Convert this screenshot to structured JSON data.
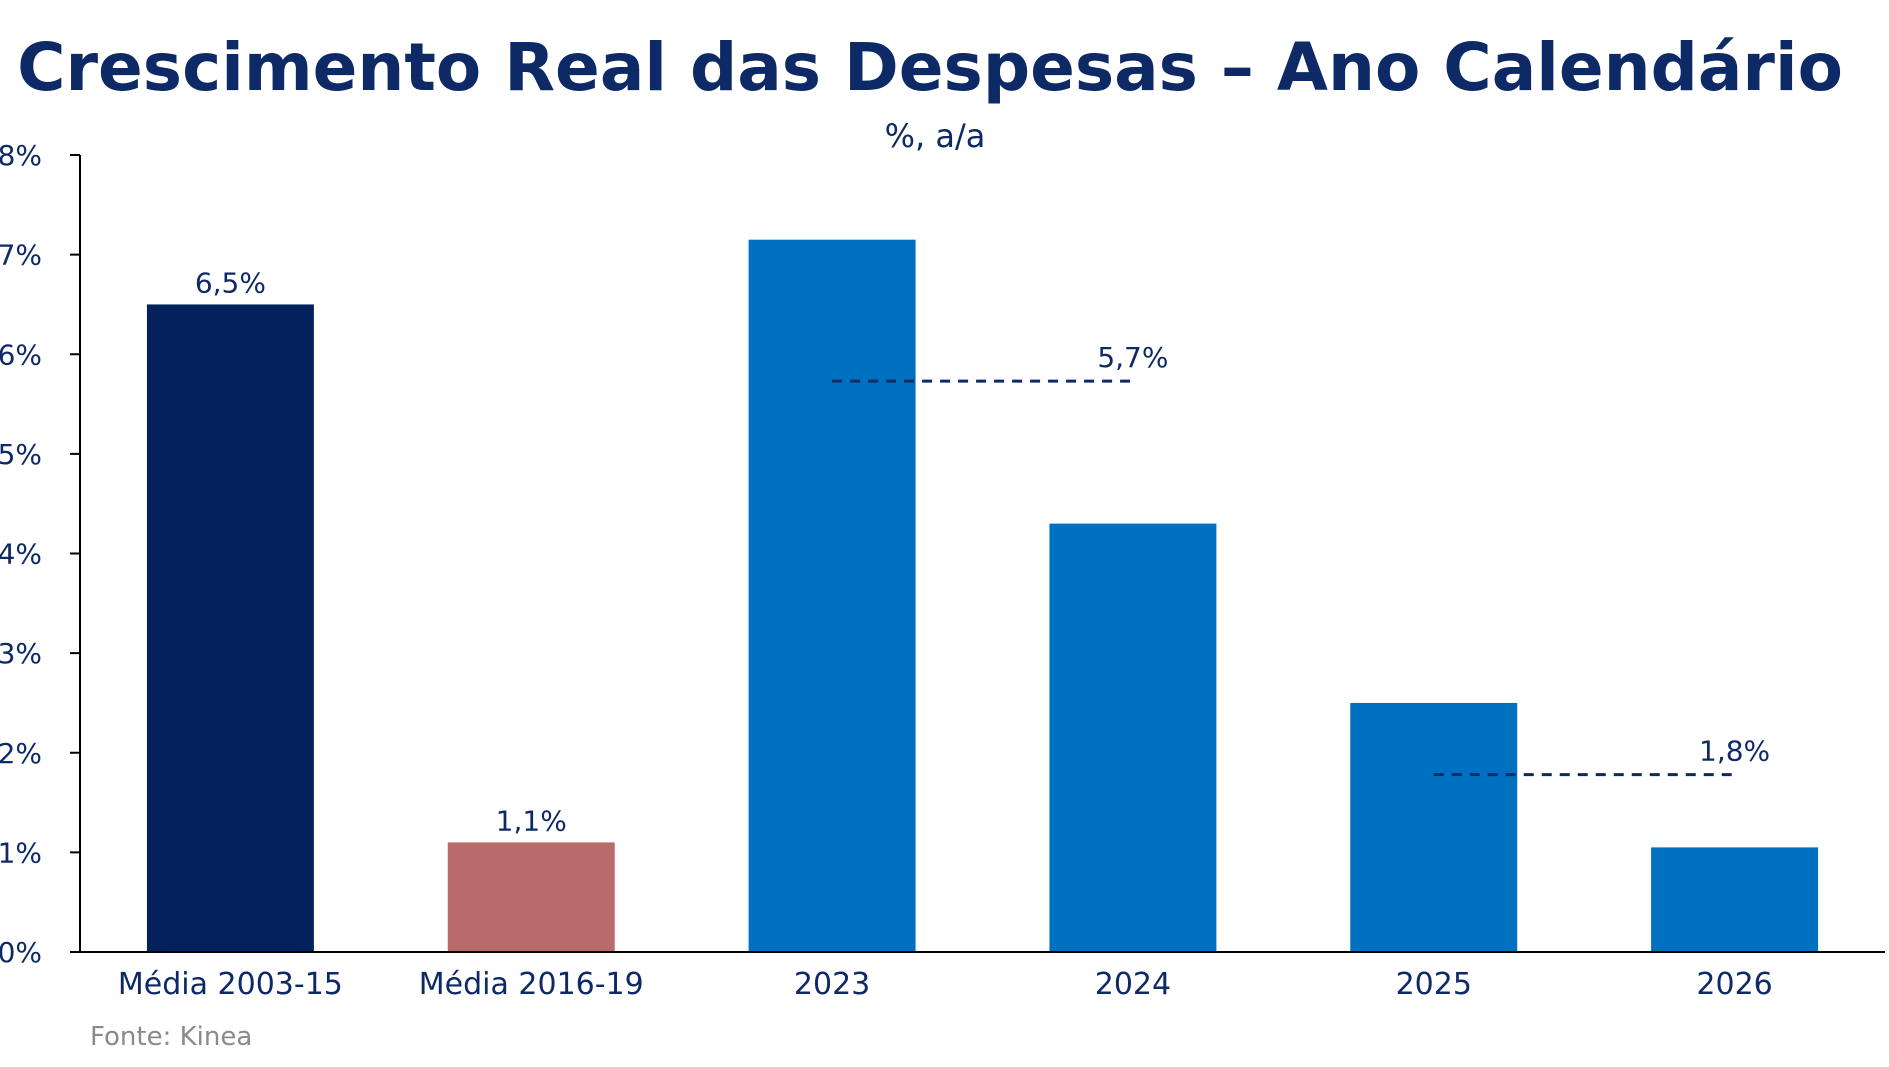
{
  "chart_data": {
    "type": "bar",
    "title": "Crescimento Real das Despesas – Ano Calendário",
    "subtitle": "%, a/a",
    "xlabel": "",
    "ylabel": "",
    "ylim": [
      0,
      8
    ],
    "yticks": [
      {
        "value": 0,
        "label": "0%"
      },
      {
        "value": 1,
        "label": "1%"
      },
      {
        "value": 2,
        "label": "2%"
      },
      {
        "value": 3,
        "label": "3%"
      },
      {
        "value": 4,
        "label": "4%"
      },
      {
        "value": 5,
        "label": "5%"
      },
      {
        "value": 6,
        "label": "6%"
      },
      {
        "value": 7,
        "label": "7%"
      },
      {
        "value": 8,
        "label": "8%"
      }
    ],
    "categories": [
      "Média 2003-15",
      "Média 2016-19",
      "2023",
      "2024",
      "2025",
      "2026"
    ],
    "values": [
      6.5,
      1.1,
      7.15,
      4.3,
      2.5,
      1.05
    ],
    "colors": [
      "#03215c",
      "#b96b69",
      "#0070c0",
      "#0070c0",
      "#0070c0",
      "#0070c0"
    ],
    "data_labels": [
      "6,5%",
      "1,1%",
      "",
      "",
      "",
      ""
    ],
    "averages": [
      {
        "from_category": 2,
        "to_category": 3,
        "value": 5.73,
        "label": "5,7%",
        "color": "#0d2a66"
      },
      {
        "from_category": 4,
        "to_category": 5,
        "value": 1.78,
        "label": "1,8%",
        "color": "#0d2a66"
      }
    ],
    "grid": false,
    "legend": "none"
  },
  "source": "Fonte: Kinea"
}
